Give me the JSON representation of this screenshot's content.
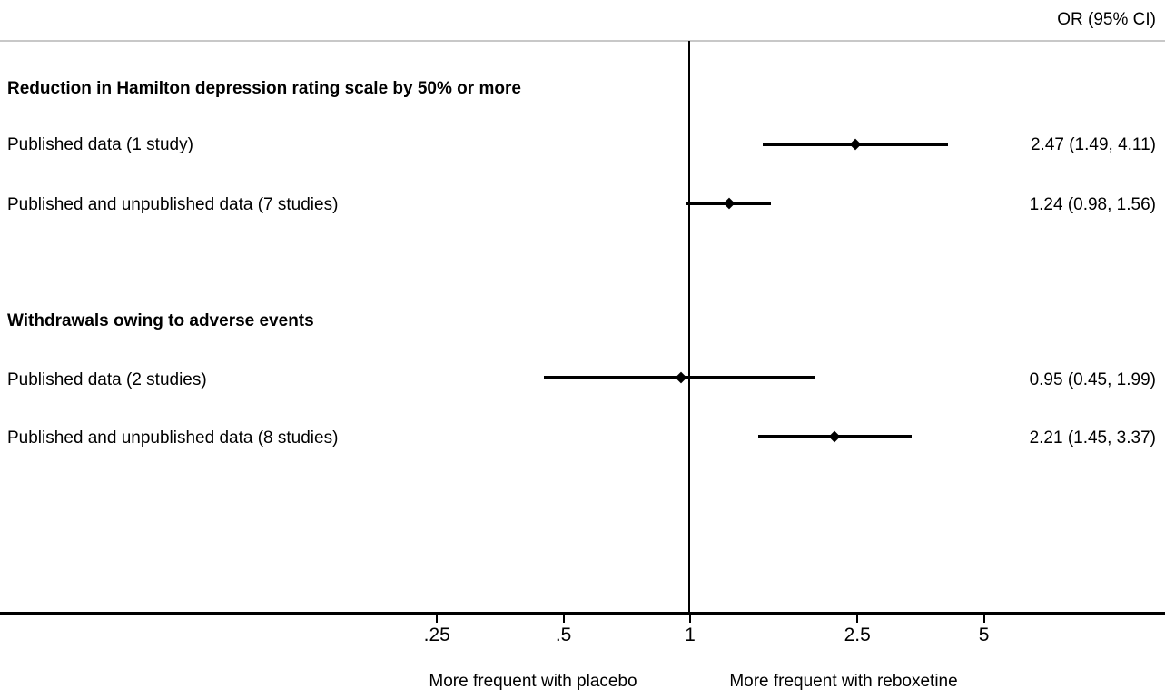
{
  "chart_data": {
    "type": "forest",
    "effect_label": "OR (95% CI)",
    "x_axis": {
      "scale": "log",
      "ticks": [
        0.25,
        0.5,
        1,
        2.5,
        5
      ],
      "tick_labels": [
        ".25",
        ".5",
        "1",
        "2.5",
        "5"
      ],
      "reference_line": 1,
      "left_direction_label": "More frequent with placebo",
      "right_direction_label": "More frequent with reboxetine"
    },
    "groups": [
      {
        "heading": "Reduction in Hamilton depression rating scale by 50% or more",
        "rows": [
          {
            "label": "Published data (1 study)",
            "or": 2.47,
            "ci_low": 1.49,
            "ci_high": 4.11,
            "display": "2.47 (1.49, 4.11)"
          },
          {
            "label": "Published and unpublished data (7 studies)",
            "or": 1.24,
            "ci_low": 0.98,
            "ci_high": 1.56,
            "display": "1.24 (0.98, 1.56)"
          }
        ]
      },
      {
        "heading": "Withdrawals owing to adverse events",
        "rows": [
          {
            "label": "Published data (2 studies)",
            "or": 0.95,
            "ci_low": 0.45,
            "ci_high": 1.99,
            "display": "0.95 (0.45, 1.99)"
          },
          {
            "label": "Published and unpublished data (8 studies)",
            "or": 2.21,
            "ci_low": 1.45,
            "ci_high": 3.37,
            "display": "2.21 (1.45, 3.37)"
          }
        ]
      }
    ]
  }
}
